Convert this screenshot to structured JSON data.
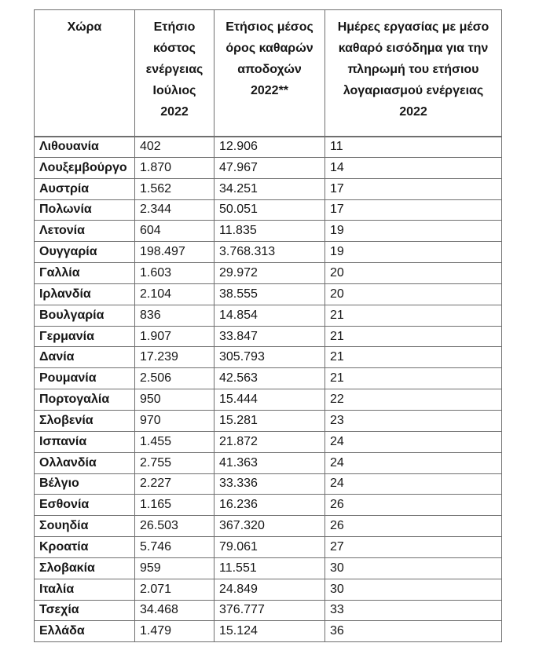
{
  "document": {
    "table": {
      "headers": [
        "Χώρα",
        "Ετήσιο\nκόστος\nενέργειας\nΙούλιος\n2022",
        "Ετήσιος μέσος\nόρος καθαρών\nαποδοχών\n2022**",
        "Ημέρες εργασίας με μέσο\nκαθαρό εισόδημα για την\nπληρωμή του ετήσιου\nλογαριασμού ενέργειας\n2022"
      ],
      "rows": [
        [
          "Λιθουανία",
          "402",
          "12.906",
          "11"
        ],
        [
          "Λουξεμβούργο",
          "1.870",
          "47.967",
          "14"
        ],
        [
          "Αυστρία",
          "1.562",
          "34.251",
          "17"
        ],
        [
          "Πολωνία",
          "2.344",
          "50.051",
          "17"
        ],
        [
          "Λετονία",
          "604",
          "11.835",
          "19"
        ],
        [
          "Ουγγαρία",
          "198.497",
          "3.768.313",
          "19"
        ],
        [
          "Γαλλία",
          "1.603",
          "29.972",
          "20"
        ],
        [
          "Ιρλανδία",
          "2.104",
          "38.555",
          "20"
        ],
        [
          "Βουλγαρία",
          "836",
          "14.854",
          "21"
        ],
        [
          "Γερμανία",
          "1.907",
          "33.847",
          "21"
        ],
        [
          "Δανία",
          "17.239",
          "305.793",
          "21"
        ],
        [
          "Ρουμανία",
          "2.506",
          "42.563",
          "21"
        ],
        [
          "Πορτογαλία",
          "950",
          "15.444",
          "22"
        ],
        [
          "Σλοβενία",
          "970",
          "15.281",
          "23"
        ],
        [
          "Ισπανία",
          "1.455",
          "21.872",
          "24"
        ],
        [
          "Ολλανδία",
          "2.755",
          "41.363",
          "24"
        ],
        [
          "Βέλγιο",
          "2.227",
          "33.336",
          "24"
        ],
        [
          "Εσθονία",
          "1.165",
          "16.236",
          "26"
        ],
        [
          "Σουηδία",
          "26.503",
          "367.320",
          "26"
        ],
        [
          "Κροατία",
          "5.746",
          "79.061",
          "27"
        ],
        [
          "Σλοβακία",
          "959",
          "11.551",
          "30"
        ],
        [
          "Ιταλία",
          "2.071",
          "24.849",
          "30"
        ],
        [
          "Τσεχία",
          "34.468",
          "376.777",
          "33"
        ],
        [
          "Ελλάδα",
          "1.479",
          "15.124",
          "36"
        ]
      ]
    },
    "colors": {
      "border": "#6f6f6f",
      "text": "#161616",
      "background": "#ffffff"
    }
  }
}
